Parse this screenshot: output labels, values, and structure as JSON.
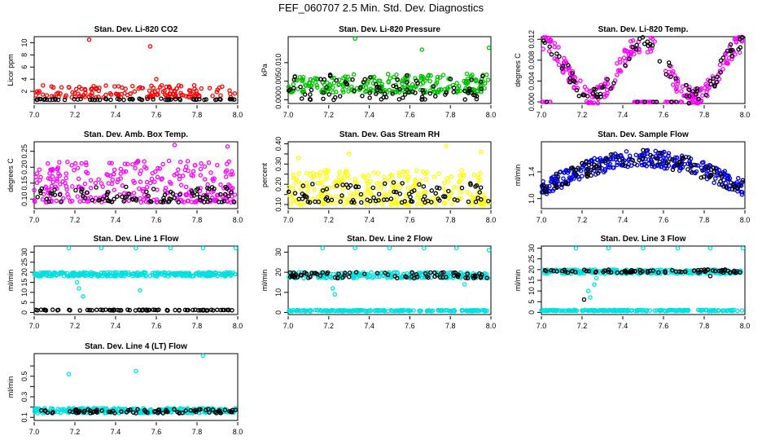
{
  "title": "FEF_060707  2.5 Min. Std. Dev. Diagnostics",
  "chart_data": [
    {
      "type": "scatter",
      "title": "Stan. Dev. Li-820 CO2",
      "ylabel": "Licor ppm",
      "xlim": [
        7.0,
        8.0
      ],
      "ylim": [
        0,
        11
      ],
      "xticks": [
        7.0,
        7.2,
        7.4,
        7.6,
        7.8,
        8.0
      ],
      "xtick_labels": [
        "7.0",
        "7.2",
        "7.4",
        "7.6",
        "7.8",
        "8.0"
      ],
      "yticks": [
        2,
        4,
        6,
        8,
        10
      ],
      "ytick_labels": [
        "2",
        "4",
        "6",
        "8",
        "10"
      ],
      "series": [
        {
          "color": "#ff0000",
          "base": 1.0,
          "spread": 2.0,
          "points": 150,
          "outliers": [
            [
              7.27,
              10.5
            ],
            [
              7.57,
              9.4
            ],
            [
              7.6,
              4.0
            ]
          ]
        },
        {
          "color": "#000000",
          "base": 0.6,
          "spread": 0.2,
          "points": 60
        }
      ]
    },
    {
      "type": "scatter",
      "title": "Stan. Dev. Li-820 Pressure",
      "ylabel": "kPa",
      "xlim": [
        7.0,
        8.0
      ],
      "ylim": [
        -0.001,
        0.017
      ],
      "xticks": [
        7.0,
        7.2,
        7.4,
        7.6,
        7.8,
        8.0
      ],
      "xtick_labels": [
        "7.0",
        "7.2",
        "7.4",
        "7.6",
        "7.8",
        "8.0"
      ],
      "yticks": [
        0.0,
        0.005,
        0.01
      ],
      "ytick_labels": [
        "0.000",
        "0.005",
        "0.010"
      ],
      "series": [
        {
          "color": "#00c000",
          "base": 0.002,
          "spread": 0.005,
          "points": 260,
          "outliers": [
            [
              7.33,
              0.0165
            ],
            [
              7.66,
              0.0135
            ],
            [
              7.99,
              0.014
            ]
          ]
        },
        {
          "color": "#000000",
          "base": 0.0,
          "spread": 0.007,
          "points": 90
        }
      ]
    },
    {
      "type": "scatter",
      "title": "Stan. Dev. Li-820 Temp.",
      "ylabel": "degrees C",
      "xlim": [
        7.0,
        8.0
      ],
      "ylim": [
        -0.0003,
        0.0125
      ],
      "xticks": [
        7.0,
        7.2,
        7.4,
        7.6,
        7.8,
        8.0
      ],
      "xtick_labels": [
        "7.0",
        "7.2",
        "7.4",
        "7.6",
        "7.8",
        "8.0"
      ],
      "yticks": [
        0.0,
        0.004,
        0.008,
        0.012
      ],
      "ytick_labels": [
        "0.000",
        "0.004",
        "0.008",
        "0.012"
      ],
      "series": [
        {
          "color": "#ff00ff",
          "wave": true,
          "points": 260
        },
        {
          "color": "#000000",
          "wave": true,
          "points": 90
        }
      ]
    },
    {
      "type": "scatter",
      "title": "Stan. Dev. Amb. Box Temp.",
      "ylabel": "degrees C",
      "xlim": [
        7.0,
        8.0
      ],
      "ylim": [
        0.07,
        0.28
      ],
      "xticks": [
        7.0,
        7.2,
        7.4,
        7.6,
        7.8,
        8.0
      ],
      "xtick_labels": [
        "7.0",
        "7.2",
        "7.4",
        "7.6",
        "7.8",
        "8.0"
      ],
      "yticks": [
        0.1,
        0.15,
        0.2,
        0.25
      ],
      "ytick_labels": [
        "0.10",
        "0.15",
        "0.20",
        "0.25"
      ],
      "series": [
        {
          "color": "#ff00ff",
          "base": 0.09,
          "spread": 0.13,
          "points": 280,
          "outliers": [
            [
              7.69,
              0.27
            ],
            [
              7.95,
              0.265
            ]
          ]
        },
        {
          "color": "#000000",
          "base": 0.09,
          "spread": 0.05,
          "points": 90
        }
      ]
    },
    {
      "type": "scatter",
      "title": "Stan. Dev. Gas Stream RH",
      "ylabel": "percent",
      "xlim": [
        7.0,
        8.0
      ],
      "ylim": [
        0.08,
        0.41
      ],
      "xticks": [
        7.0,
        7.2,
        7.4,
        7.6,
        7.8,
        8.0
      ],
      "xtick_labels": [
        "7.0",
        "7.2",
        "7.4",
        "7.6",
        "7.8",
        "8.0"
      ],
      "yticks": [
        0.1,
        0.15,
        0.2,
        0.25,
        0.3,
        0.35,
        0.4
      ],
      "ytick_labels": [
        "0.10",
        "",
        "0.20",
        "",
        "0.30",
        "",
        "0.40"
      ],
      "series": [
        {
          "color": "#ffff00",
          "base": 0.1,
          "spread": 0.17,
          "points": 280,
          "outliers": [
            [
              7.05,
              0.33
            ],
            [
              7.3,
              0.35
            ],
            [
              7.78,
              0.39
            ],
            [
              7.95,
              0.36
            ]
          ]
        },
        {
          "color": "#000000",
          "base": 0.11,
          "spread": 0.1,
          "points": 90
        }
      ]
    },
    {
      "type": "scatter",
      "title": "Stan. Dev. Sample Flow",
      "ylabel": "ml/min",
      "xlim": [
        7.0,
        8.0
      ],
      "ylim": [
        0.85,
        1.85
      ],
      "xticks": [
        7.0,
        7.2,
        7.4,
        7.6,
        7.8,
        8.0
      ],
      "xtick_labels": [
        "7.0",
        "7.2",
        "7.4",
        "7.6",
        "7.8",
        "8.0"
      ],
      "yticks": [
        1.0,
        1.4
      ],
      "ytick_labels": [
        "1.0",
        "1.4"
      ],
      "series": [
        {
          "color": "#0000e0",
          "hump": true,
          "points": 300
        },
        {
          "color": "#000000",
          "hump": true,
          "points": 90
        }
      ]
    },
    {
      "type": "scatter",
      "title": "Stan. Dev. Line 1 Flow",
      "ylabel": "ml/min",
      "xlim": [
        7.0,
        8.0
      ],
      "ylim": [
        -1,
        33
      ],
      "xticks": [
        7.0,
        7.2,
        7.4,
        7.6,
        7.8,
        8.0
      ],
      "xtick_labels": [
        "7.0",
        "7.2",
        "7.4",
        "7.6",
        "7.8",
        "8.0"
      ],
      "yticks": [
        0,
        5,
        10,
        15,
        20,
        25,
        30
      ],
      "ytick_labels": [
        "0",
        "5",
        "10",
        "15",
        "20",
        "25",
        "30"
      ],
      "series": [
        {
          "color": "#00e0e0",
          "band": [
            18,
            20
          ],
          "points": 320,
          "outliers": [
            [
              7.17,
              32
            ],
            [
              7.33,
              32
            ],
            [
              7.5,
              32
            ],
            [
              7.67,
              32
            ],
            [
              7.83,
              32
            ],
            [
              7.99,
              32
            ],
            [
              7.22,
              12
            ],
            [
              7.24,
              8
            ],
            [
              7.21,
              15
            ],
            [
              7.52,
              11
            ]
          ]
        },
        {
          "color": "#000000",
          "band": [
            1,
            1.4
          ],
          "points": 80
        }
      ]
    },
    {
      "type": "scatter",
      "title": "Stan. Dev. Line 2 Flow",
      "ylabel": "ml/min",
      "xlim": [
        7.0,
        8.0
      ],
      "ylim": [
        -1,
        33
      ],
      "xticks": [
        7.0,
        7.2,
        7.4,
        7.6,
        7.8,
        8.0
      ],
      "xtick_labels": [
        "7.0",
        "7.2",
        "7.4",
        "7.6",
        "7.8",
        "8.0"
      ],
      "yticks": [
        0,
        10,
        20,
        30
      ],
      "ytick_labels": [
        "0",
        "10",
        "20",
        "30"
      ],
      "series": [
        {
          "color": "#00e0e0",
          "band": [
            17,
            20
          ],
          "points": 240,
          "outliers": [
            [
              7.17,
              32
            ],
            [
              7.33,
              32
            ],
            [
              7.5,
              32
            ],
            [
              7.67,
              32
            ],
            [
              7.83,
              32
            ],
            [
              7.99,
              31
            ],
            [
              7.23,
              9
            ],
            [
              7.22,
              12
            ],
            [
              7.87,
              14
            ]
          ]
        },
        {
          "color": "#00e0e0",
          "band": [
            0.6,
            1.2
          ],
          "points": 200
        },
        {
          "color": "#000000",
          "band": [
            17,
            20
          ],
          "points": 80
        }
      ]
    },
    {
      "type": "scatter",
      "title": "Stan. Dev. Line 3 Flow",
      "ylabel": "ml/min",
      "xlim": [
        7.0,
        8.0
      ],
      "ylim": [
        -1,
        31
      ],
      "xticks": [
        7.0,
        7.2,
        7.4,
        7.6,
        7.8,
        8.0
      ],
      "xtick_labels": [
        "7.0",
        "7.2",
        "7.4",
        "7.6",
        "7.8",
        "8.0"
      ],
      "yticks": [
        0,
        5,
        10,
        15,
        20,
        25,
        30
      ],
      "ytick_labels": [
        "0",
        "5",
        "10",
        "15",
        "20",
        "25",
        "30"
      ],
      "series": [
        {
          "color": "#00e0e0",
          "band": [
            18,
            20
          ],
          "points": 240,
          "outliers": [
            [
              7.17,
              30
            ],
            [
              7.33,
              30
            ],
            [
              7.5,
              30
            ],
            [
              7.67,
              30
            ],
            [
              7.83,
              30
            ],
            [
              7.99,
              30
            ],
            [
              7.24,
              7
            ],
            [
              7.23,
              10
            ],
            [
              7.26,
              13
            ],
            [
              7.27,
              16
            ]
          ]
        },
        {
          "color": "#00e0e0",
          "band": [
            0.6,
            1.2
          ],
          "points": 200
        },
        {
          "color": "#000000",
          "band": [
            18.5,
            20
          ],
          "points": 80,
          "outliers": [
            [
              7.21,
              6
            ],
            [
              7.83,
              17
            ]
          ]
        }
      ]
    },
    {
      "type": "scatter",
      "title": "Stan. Dev. Line 4 (LT) Flow",
      "ylabel": "ml/min",
      "xlim": [
        7.0,
        8.0
      ],
      "ylim": [
        0.07,
        0.72
      ],
      "xticks": [
        7.0,
        7.2,
        7.4,
        7.6,
        7.8,
        8.0
      ],
      "xtick_labels": [
        "7.0",
        "7.2",
        "7.4",
        "7.6",
        "7.8",
        "8.0"
      ],
      "yticks": [
        0.1,
        0.2,
        0.3,
        0.4,
        0.5,
        0.6
      ],
      "ytick_labels": [
        "0.1",
        "",
        "0.3",
        "",
        "0.5",
        ""
      ],
      "series": [
        {
          "color": "#00e0e0",
          "band": [
            0.14,
            0.19
          ],
          "points": 300,
          "outliers": [
            [
              7.17,
              0.52
            ],
            [
              7.5,
              0.55
            ],
            [
              7.83,
              0.7
            ]
          ]
        },
        {
          "color": "#000000",
          "band": [
            0.14,
            0.18
          ],
          "points": 80
        }
      ]
    }
  ]
}
